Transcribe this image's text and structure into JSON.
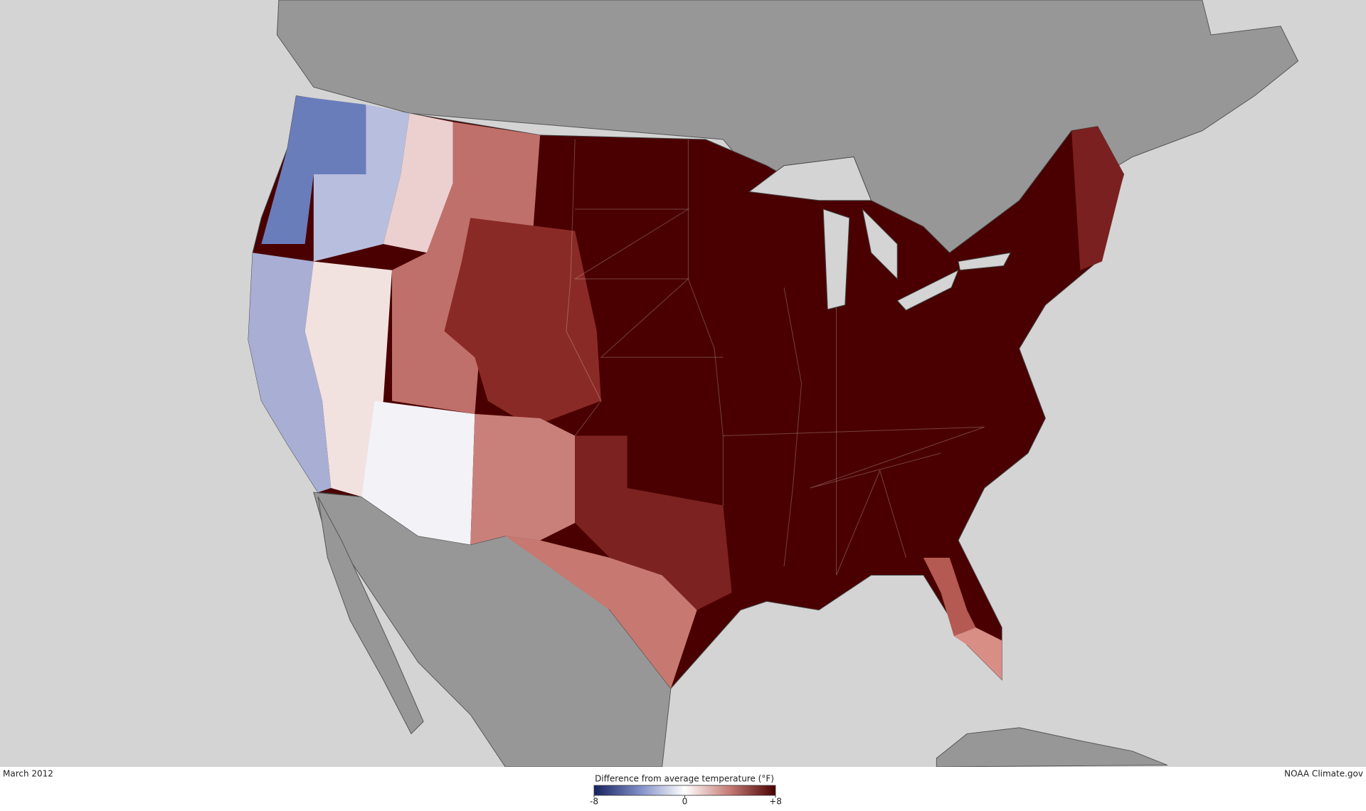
{
  "map": {
    "date": "March 2012",
    "credit": "NOAA Climate.gov"
  },
  "legend": {
    "title": "Difference from average temperature (°F)",
    "lim": [
      -8,
      8
    ],
    "ticks": [
      -8,
      0,
      {
        "value": 8,
        "label": "+8"
      }
    ],
    "colors": [
      "#15225e",
      "#7f8cc6",
      "#ffffff",
      "#c47a74",
      "#4a0000"
    ]
  }
}
